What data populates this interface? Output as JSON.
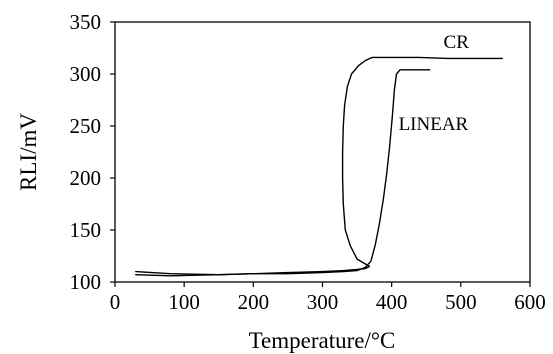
{
  "chart_data": {
    "type": "line",
    "title": "",
    "xlabel": "Temperature/°C",
    "ylabel": "RLI/mV",
    "xlim": [
      0,
      600
    ],
    "ylim": [
      100,
      350
    ],
    "x_ticks": [
      0,
      100,
      200,
      300,
      400,
      500,
      600
    ],
    "y_ticks": [
      100,
      150,
      200,
      250,
      300,
      350
    ],
    "grid": false,
    "legend": "none",
    "series": [
      {
        "name": "CR",
        "color": "#000000",
        "points": [
          [
            30,
            110
          ],
          [
            80,
            108
          ],
          [
            150,
            107
          ],
          [
            200,
            108
          ],
          [
            250,
            109
          ],
          [
            300,
            110
          ],
          [
            330,
            111
          ],
          [
            350,
            112
          ],
          [
            362,
            113
          ],
          [
            368,
            115
          ],
          [
            350,
            122
          ],
          [
            340,
            135
          ],
          [
            333,
            150
          ],
          [
            330,
            175
          ],
          [
            329,
            200
          ],
          [
            329,
            225
          ],
          [
            330,
            250
          ],
          [
            332,
            270
          ],
          [
            336,
            288
          ],
          [
            342,
            300
          ],
          [
            352,
            308
          ],
          [
            362,
            313
          ],
          [
            372,
            316
          ],
          [
            385,
            316
          ],
          [
            400,
            316
          ],
          [
            440,
            316
          ],
          [
            480,
            315
          ],
          [
            520,
            315
          ],
          [
            560,
            315
          ]
        ]
      },
      {
        "name": "LINEAR",
        "color": "#000000",
        "points": [
          [
            30,
            107
          ],
          [
            80,
            106
          ],
          [
            150,
            107
          ],
          [
            200,
            108
          ],
          [
            250,
            108
          ],
          [
            300,
            109
          ],
          [
            330,
            110
          ],
          [
            350,
            111
          ],
          [
            362,
            114
          ],
          [
            370,
            120
          ],
          [
            376,
            135
          ],
          [
            382,
            155
          ],
          [
            388,
            180
          ],
          [
            393,
            205
          ],
          [
            397,
            230
          ],
          [
            401,
            260
          ],
          [
            404,
            285
          ],
          [
            407,
            300
          ],
          [
            412,
            304
          ],
          [
            430,
            304
          ],
          [
            455,
            304
          ]
        ]
      }
    ],
    "annotations": [
      {
        "text": "CR",
        "x": 475,
        "y": 325
      },
      {
        "text": "LINEAR",
        "x": 410,
        "y": 246
      }
    ]
  }
}
